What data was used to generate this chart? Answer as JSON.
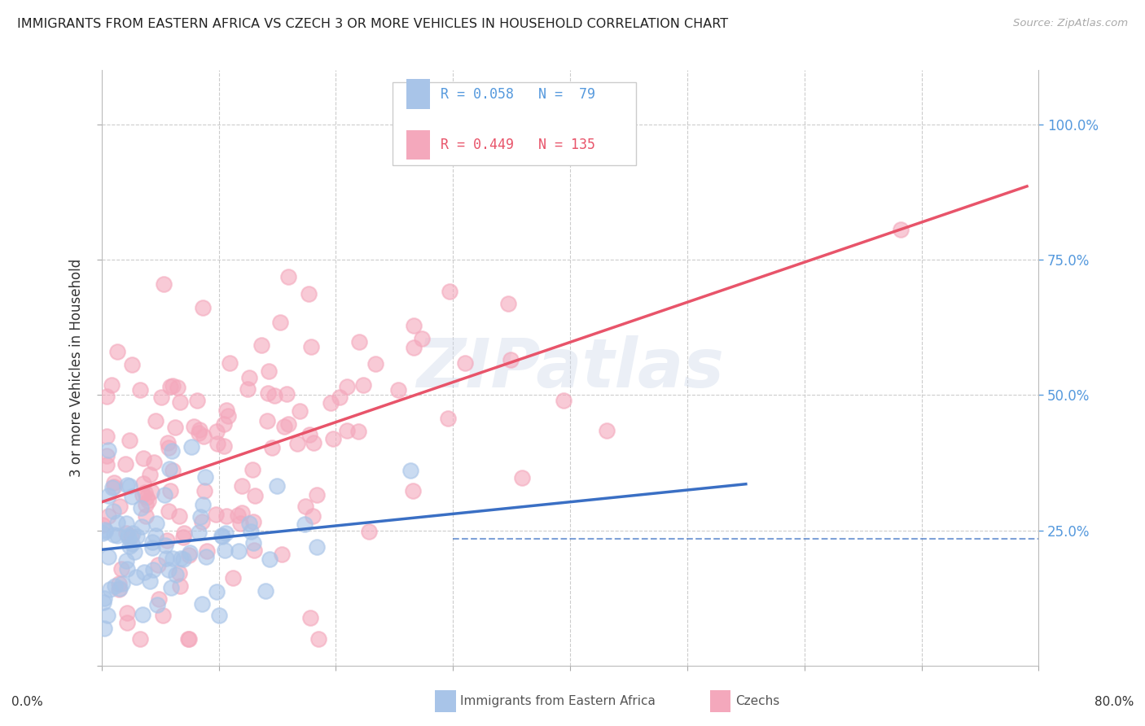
{
  "title": "IMMIGRANTS FROM EASTERN AFRICA VS CZECH 3 OR MORE VEHICLES IN HOUSEHOLD CORRELATION CHART",
  "source": "Source: ZipAtlas.com",
  "ylabel": "3 or more Vehicles in Household",
  "blue_color": "#a8c4e8",
  "pink_color": "#f4a8bc",
  "blue_edge_color": "#a8c4e8",
  "pink_edge_color": "#f4a8bc",
  "blue_line_color": "#3a6fc4",
  "pink_line_color": "#e8546a",
  "legend_blue_color": "#5599dd",
  "watermark_color": "#d0dff0",
  "grid_color": "#cccccc",
  "right_tick_color": "#5599dd",
  "bottom_label_color": "#333333",
  "title_color": "#222222",
  "source_color": "#aaaaaa",
  "ylabel_color": "#333333",
  "legend_box_color": "#dddddd",
  "bottom_legend_text_color": "#555555"
}
